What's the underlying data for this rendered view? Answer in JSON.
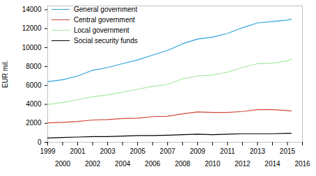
{
  "chart_data": {
    "type": "line",
    "y_label": "EUR mil.",
    "x": [
      1999,
      2000,
      2001,
      2002,
      2003,
      2004,
      2005,
      2006,
      2007,
      2008,
      2009,
      2010,
      2011,
      2012,
      2013,
      2014,
      2015,
      2015.25
    ],
    "series": [
      {
        "name": "General government",
        "color": "#2ea3de",
        "values": [
          6400,
          6600,
          7000,
          7600,
          7900,
          8300,
          8700,
          9200,
          9700,
          10400,
          10900,
          11100,
          11500,
          12100,
          12600,
          12750,
          12900,
          13000
        ]
      },
      {
        "name": "Central government",
        "color": "#d2473a",
        "values": [
          2050,
          2100,
          2200,
          2350,
          2400,
          2500,
          2550,
          2700,
          2750,
          3000,
          3200,
          3150,
          3150,
          3250,
          3450,
          3450,
          3350,
          3300
        ]
      },
      {
        "name": "Local government",
        "color": "#a6e8a0",
        "values": [
          4000,
          4200,
          4500,
          4800,
          5000,
          5300,
          5600,
          5900,
          6100,
          6700,
          7000,
          7100,
          7400,
          7900,
          8300,
          8350,
          8600,
          8800
        ]
      },
      {
        "name": "Social security funds",
        "color": "#000000",
        "values": [
          450,
          500,
          550,
          600,
          600,
          650,
          700,
          700,
          750,
          800,
          850,
          800,
          850,
          900,
          900,
          900,
          950,
          950
        ]
      }
    ],
    "xlim": [
      1999,
      2016
    ],
    "xticks": [
      1999,
      2000,
      2001,
      2002,
      2003,
      2004,
      2005,
      2006,
      2007,
      2008,
      2009,
      2010,
      2011,
      2012,
      2013,
      2014,
      2015,
      2016
    ],
    "ylim": [
      0,
      14400
    ],
    "yticks": [
      0,
      2000,
      4000,
      6000,
      8000,
      10000,
      12000,
      14000
    ],
    "grid": false,
    "legend": "top-left"
  }
}
